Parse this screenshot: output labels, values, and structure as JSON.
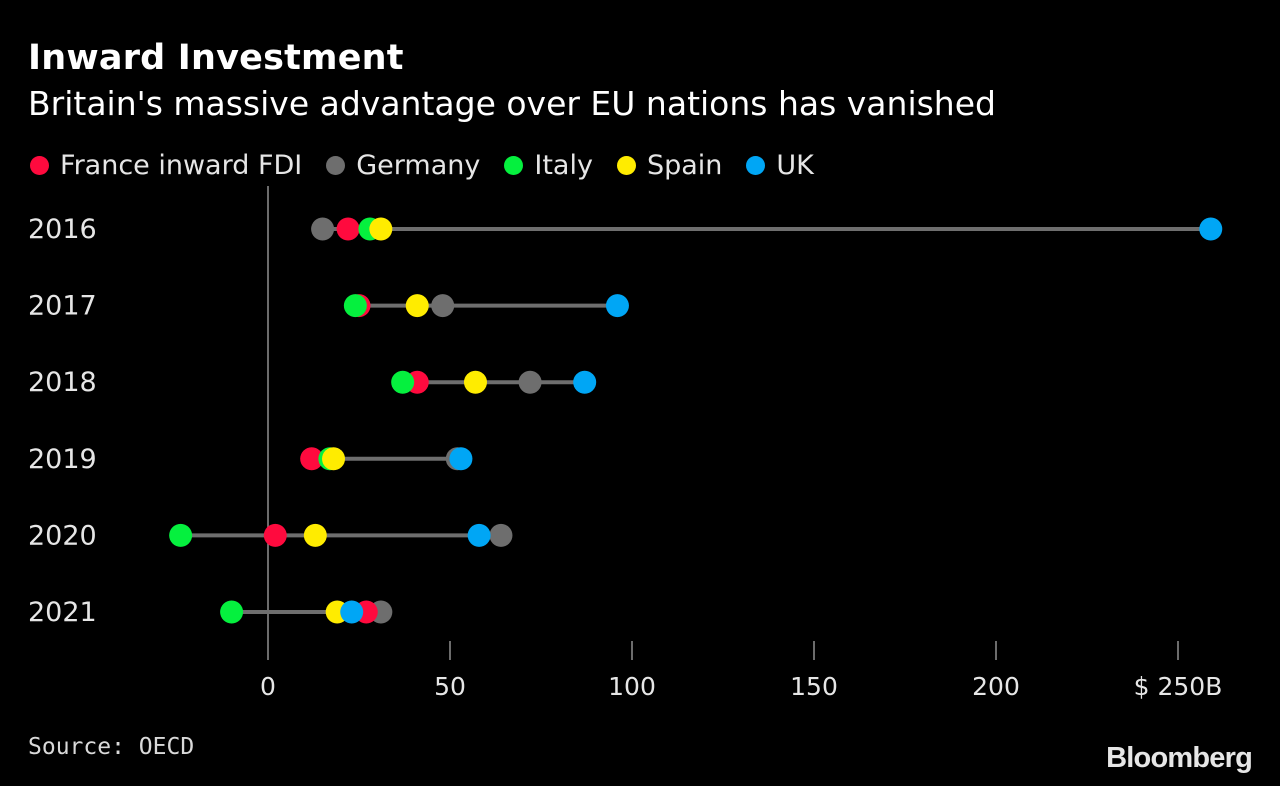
{
  "title": "Inward Investment",
  "subtitle": "Britain's massive advantage over EU nations has vanished",
  "source": "Source: OECD",
  "brand": "Bloomberg",
  "colors": {
    "France inward FDI": "#ff0a3e",
    "Germany": "#6e6e6e",
    "Italy": "#05f03e",
    "Spain": "#ffec00",
    "UK": "#00a6f5",
    "connector": "#6e6e6e",
    "axis": "#9a9a9a",
    "background": "#000000"
  },
  "legend": [
    {
      "name": "France inward FDI",
      "color": "#ff0a3e"
    },
    {
      "name": "Germany",
      "color": "#6e6e6e"
    },
    {
      "name": "Italy",
      "color": "#05f03e"
    },
    {
      "name": "Spain",
      "color": "#ffec00"
    },
    {
      "name": "UK",
      "color": "#00a6f5"
    }
  ],
  "chart_data": {
    "type": "scatter",
    "subtype": "dot-plot",
    "title": "Inward Investment",
    "subtitle": "Britain's massive advantage over EU nations has vanished",
    "categories": [
      "2016",
      "2017",
      "2018",
      "2019",
      "2020",
      "2021"
    ],
    "xlim": [
      -30,
      260
    ],
    "xticks": [
      0,
      50,
      100,
      150,
      200,
      250
    ],
    "xtick_labels": [
      "0",
      "50",
      "100",
      "150",
      "200",
      "$ 250B"
    ],
    "grid": false,
    "legend_position": "top-left",
    "series": [
      {
        "name": "France inward FDI",
        "values": [
          22,
          25,
          41,
          12,
          2,
          27
        ]
      },
      {
        "name": "Germany",
        "values": [
          15,
          48,
          72,
          52,
          64,
          31
        ]
      },
      {
        "name": "Italy",
        "values": [
          28,
          24,
          37,
          17,
          -24,
          -10
        ]
      },
      {
        "name": "Spain",
        "values": [
          31,
          41,
          57,
          18,
          13,
          19
        ]
      },
      {
        "name": "UK",
        "values": [
          259,
          96,
          87,
          53,
          58,
          23
        ]
      }
    ]
  }
}
